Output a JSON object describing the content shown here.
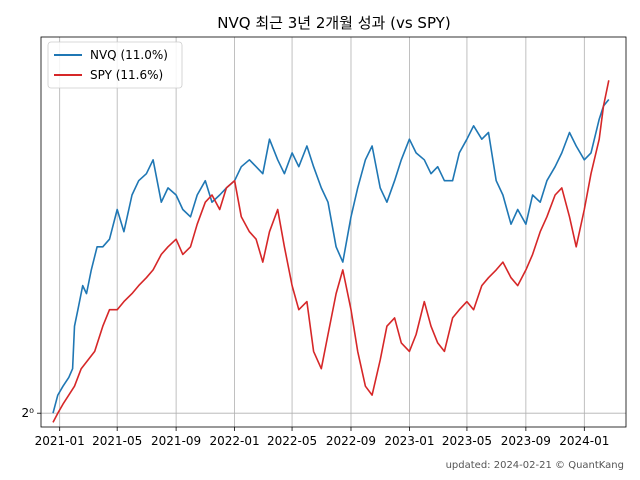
{
  "chart_data": {
    "type": "line",
    "title": "NVQ 최근 3년 2개월 성과 (vs SPY)",
    "xlabel": "",
    "ylabel": "",
    "y_scale": "log2",
    "ylim": [
      0.985,
      1.51
    ],
    "y_tick_labels": [
      "2⁰"
    ],
    "grid": true,
    "legend_placement": "top-left",
    "x_tick_labels": [
      "2021-01",
      "2021-05",
      "2021-09",
      "2022-01",
      "2022-05",
      "2022-09",
      "2023-01",
      "2023-05",
      "2023-09",
      "2024-01"
    ],
    "x_ticks": [
      "2021-01-01",
      "2021-05-01",
      "2021-09-01",
      "2022-01-01",
      "2022-05-01",
      "2022-09-01",
      "2023-01-01",
      "2023-05-01",
      "2023-09-01",
      "2024-01-01"
    ],
    "x_range": [
      "2020-11-23",
      "2024-03-28"
    ],
    "series": [
      {
        "name": "NVQ (11.0%)",
        "color": "#1f77b4",
        "points": [
          [
            "2020-12-18",
            1.0
          ],
          [
            "2020-12-28",
            1.02
          ],
          [
            "2021-01-08",
            1.03
          ],
          [
            "2021-01-20",
            1.04
          ],
          [
            "2021-01-28",
            1.05
          ],
          [
            "2021-02-01",
            1.1
          ],
          [
            "2021-02-08",
            1.12
          ],
          [
            "2021-02-18",
            1.15
          ],
          [
            "2021-02-26",
            1.14
          ],
          [
            "2021-03-08",
            1.17
          ],
          [
            "2021-03-20",
            1.2
          ],
          [
            "2021-04-01",
            1.2
          ],
          [
            "2021-04-15",
            1.21
          ],
          [
            "2021-05-01",
            1.25
          ],
          [
            "2021-05-15",
            1.22
          ],
          [
            "2021-06-01",
            1.27
          ],
          [
            "2021-06-15",
            1.29
          ],
          [
            "2021-07-01",
            1.3
          ],
          [
            "2021-07-15",
            1.32
          ],
          [
            "2021-08-01",
            1.26
          ],
          [
            "2021-08-15",
            1.28
          ],
          [
            "2021-09-01",
            1.27
          ],
          [
            "2021-09-15",
            1.25
          ],
          [
            "2021-10-01",
            1.24
          ],
          [
            "2021-10-15",
            1.27
          ],
          [
            "2021-11-01",
            1.29
          ],
          [
            "2021-11-15",
            1.26
          ],
          [
            "2021-12-01",
            1.27
          ],
          [
            "2021-12-15",
            1.28
          ],
          [
            "2022-01-01",
            1.29
          ],
          [
            "2022-01-15",
            1.31
          ],
          [
            "2022-02-01",
            1.32
          ],
          [
            "2022-02-15",
            1.31
          ],
          [
            "2022-03-01",
            1.3
          ],
          [
            "2022-03-15",
            1.35
          ],
          [
            "2022-04-01",
            1.32
          ],
          [
            "2022-04-15",
            1.3
          ],
          [
            "2022-05-01",
            1.33
          ],
          [
            "2022-05-15",
            1.31
          ],
          [
            "2022-06-01",
            1.34
          ],
          [
            "2022-06-15",
            1.31
          ],
          [
            "2022-07-01",
            1.28
          ],
          [
            "2022-07-15",
            1.26
          ],
          [
            "2022-08-01",
            1.2
          ],
          [
            "2022-08-15",
            1.18
          ],
          [
            "2022-09-01",
            1.24
          ],
          [
            "2022-09-15",
            1.28
          ],
          [
            "2022-10-01",
            1.32
          ],
          [
            "2022-10-15",
            1.34
          ],
          [
            "2022-11-01",
            1.28
          ],
          [
            "2022-11-15",
            1.26
          ],
          [
            "2022-12-01",
            1.29
          ],
          [
            "2022-12-15",
            1.32
          ],
          [
            "2023-01-01",
            1.35
          ],
          [
            "2023-01-15",
            1.33
          ],
          [
            "2023-02-01",
            1.32
          ],
          [
            "2023-02-15",
            1.3
          ],
          [
            "2023-03-01",
            1.31
          ],
          [
            "2023-03-15",
            1.29
          ],
          [
            "2023-04-01",
            1.29
          ],
          [
            "2023-04-15",
            1.33
          ],
          [
            "2023-05-01",
            1.35
          ],
          [
            "2023-05-15",
            1.37
          ],
          [
            "2023-06-01",
            1.35
          ],
          [
            "2023-06-15",
            1.36
          ],
          [
            "2023-07-01",
            1.29
          ],
          [
            "2023-07-15",
            1.27
          ],
          [
            "2023-08-01",
            1.23
          ],
          [
            "2023-08-15",
            1.25
          ],
          [
            "2023-09-01",
            1.23
          ],
          [
            "2023-09-15",
            1.27
          ],
          [
            "2023-10-01",
            1.26
          ],
          [
            "2023-10-15",
            1.29
          ],
          [
            "2023-11-01",
            1.31
          ],
          [
            "2023-11-15",
            1.33
          ],
          [
            "2023-12-01",
            1.36
          ],
          [
            "2023-12-15",
            1.34
          ],
          [
            "2024-01-01",
            1.32
          ],
          [
            "2024-01-15",
            1.33
          ],
          [
            "2024-02-01",
            1.38
          ],
          [
            "2024-02-10",
            1.4
          ],
          [
            "2024-02-21",
            1.41
          ]
        ]
      },
      {
        "name": "SPY (11.6%)",
        "color": "#d62728",
        "points": [
          [
            "2020-12-18",
            0.99
          ],
          [
            "2020-12-28",
            1.0
          ],
          [
            "2021-01-08",
            1.01
          ],
          [
            "2021-01-20",
            1.02
          ],
          [
            "2021-02-01",
            1.03
          ],
          [
            "2021-02-15",
            1.05
          ],
          [
            "2021-03-01",
            1.06
          ],
          [
            "2021-03-15",
            1.07
          ],
          [
            "2021-04-01",
            1.1
          ],
          [
            "2021-04-15",
            1.12
          ],
          [
            "2021-05-01",
            1.12
          ],
          [
            "2021-05-15",
            1.13
          ],
          [
            "2021-06-01",
            1.14
          ],
          [
            "2021-06-15",
            1.15
          ],
          [
            "2021-07-01",
            1.16
          ],
          [
            "2021-07-15",
            1.17
          ],
          [
            "2021-08-01",
            1.19
          ],
          [
            "2021-08-15",
            1.2
          ],
          [
            "2021-09-01",
            1.21
          ],
          [
            "2021-09-15",
            1.19
          ],
          [
            "2021-10-01",
            1.2
          ],
          [
            "2021-10-15",
            1.23
          ],
          [
            "2021-11-01",
            1.26
          ],
          [
            "2021-11-15",
            1.27
          ],
          [
            "2021-12-01",
            1.25
          ],
          [
            "2021-12-15",
            1.28
          ],
          [
            "2022-01-01",
            1.29
          ],
          [
            "2022-01-15",
            1.24
          ],
          [
            "2022-02-01",
            1.22
          ],
          [
            "2022-02-15",
            1.21
          ],
          [
            "2022-03-01",
            1.18
          ],
          [
            "2022-03-15",
            1.22
          ],
          [
            "2022-04-01",
            1.25
          ],
          [
            "2022-04-15",
            1.2
          ],
          [
            "2022-05-01",
            1.15
          ],
          [
            "2022-05-15",
            1.12
          ],
          [
            "2022-06-01",
            1.13
          ],
          [
            "2022-06-15",
            1.07
          ],
          [
            "2022-07-01",
            1.05
          ],
          [
            "2022-07-15",
            1.09
          ],
          [
            "2022-08-01",
            1.14
          ],
          [
            "2022-08-15",
            1.17
          ],
          [
            "2022-09-01",
            1.12
          ],
          [
            "2022-09-15",
            1.07
          ],
          [
            "2022-10-01",
            1.03
          ],
          [
            "2022-10-15",
            1.02
          ],
          [
            "2022-11-01",
            1.06
          ],
          [
            "2022-11-15",
            1.1
          ],
          [
            "2022-12-01",
            1.11
          ],
          [
            "2022-12-15",
            1.08
          ],
          [
            "2023-01-01",
            1.07
          ],
          [
            "2023-01-15",
            1.09
          ],
          [
            "2023-02-01",
            1.13
          ],
          [
            "2023-02-15",
            1.1
          ],
          [
            "2023-03-01",
            1.08
          ],
          [
            "2023-03-15",
            1.07
          ],
          [
            "2023-04-01",
            1.11
          ],
          [
            "2023-04-15",
            1.12
          ],
          [
            "2023-05-01",
            1.13
          ],
          [
            "2023-05-15",
            1.12
          ],
          [
            "2023-06-01",
            1.15
          ],
          [
            "2023-06-15",
            1.16
          ],
          [
            "2023-07-01",
            1.17
          ],
          [
            "2023-07-15",
            1.18
          ],
          [
            "2023-08-01",
            1.16
          ],
          [
            "2023-08-15",
            1.15
          ],
          [
            "2023-09-01",
            1.17
          ],
          [
            "2023-09-15",
            1.19
          ],
          [
            "2023-10-01",
            1.22
          ],
          [
            "2023-10-15",
            1.24
          ],
          [
            "2023-11-01",
            1.27
          ],
          [
            "2023-11-15",
            1.28
          ],
          [
            "2023-12-01",
            1.24
          ],
          [
            "2023-12-15",
            1.2
          ],
          [
            "2024-01-01",
            1.25
          ],
          [
            "2024-01-15",
            1.3
          ],
          [
            "2024-02-01",
            1.35
          ],
          [
            "2024-02-10",
            1.4
          ],
          [
            "2024-02-21",
            1.44
          ]
        ]
      }
    ]
  },
  "footer": "updated: 2024-02-21 © QuantKang"
}
